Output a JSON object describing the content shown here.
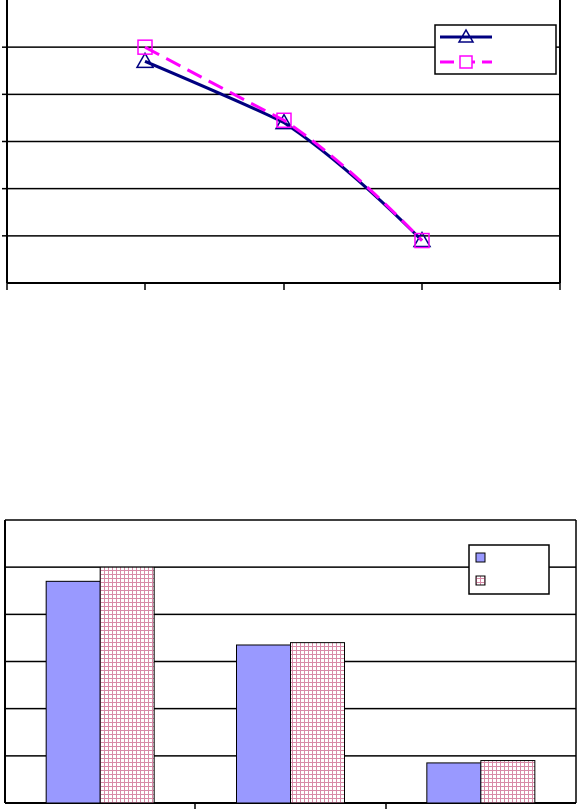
{
  "chart_data": [
    {
      "type": "line",
      "title": "",
      "xlabel": "",
      "ylabel": "",
      "categories": [
        "",
        "",
        ""
      ],
      "ylim": [
        0,
        6
      ],
      "grid": true,
      "legend_position": "top-right",
      "series": [
        {
          "color": "#000080",
          "line_style": "solid",
          "marker": "triangle",
          "values": [
            4.7,
            3.4,
            0.9
          ]
        },
        {
          "color": "#ff00ff",
          "line_style": "dashed",
          "marker": "square",
          "values": [
            5.0,
            3.45,
            0.9
          ]
        }
      ]
    },
    {
      "type": "bar",
      "title": "",
      "xlabel": "",
      "ylabel": "",
      "categories": [
        "",
        "",
        ""
      ],
      "ylim": [
        0,
        6
      ],
      "grid": true,
      "legend_position": "top-right",
      "series": [
        {
          "color": "#9999ff",
          "pattern": "solid",
          "values": [
            4.7,
            3.35,
            0.85
          ]
        },
        {
          "color": "#ffd9e6",
          "pattern": "crosshatch",
          "values": [
            5.0,
            3.4,
            0.9
          ]
        }
      ]
    }
  ]
}
